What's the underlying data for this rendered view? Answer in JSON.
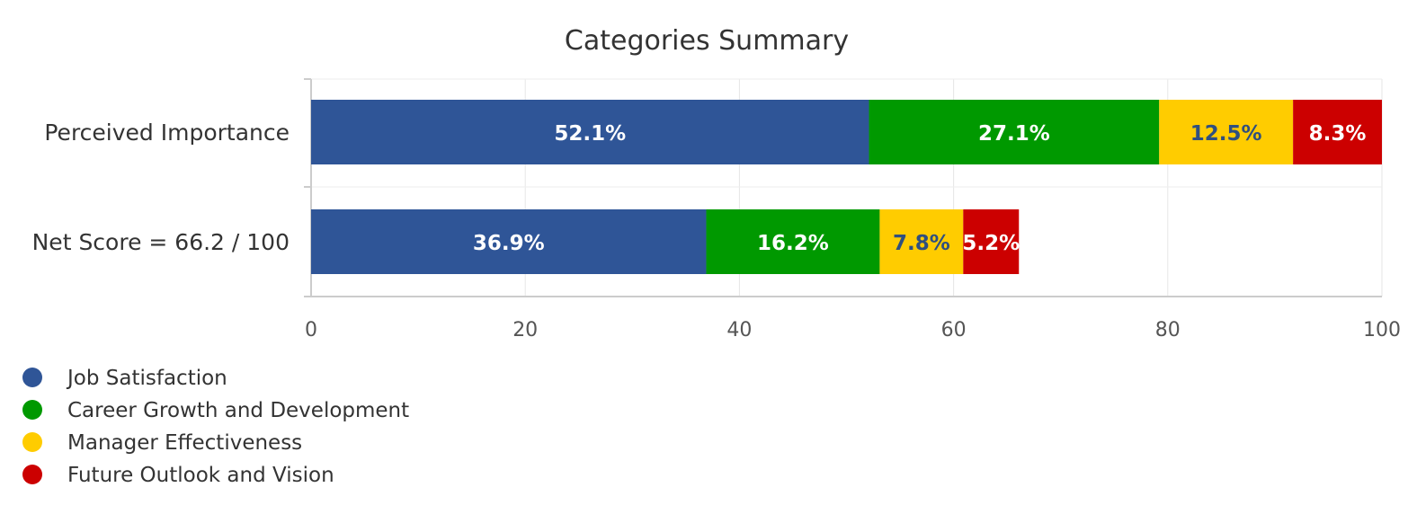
{
  "chart_data": {
    "type": "bar",
    "orientation": "horizontal",
    "stacked": true,
    "title": "Categories Summary",
    "xlabel": "",
    "ylabel": "",
    "xlim": [
      0,
      100
    ],
    "ticks": [
      "0",
      "20",
      "40",
      "60",
      "80",
      "100"
    ],
    "grid": true,
    "legend_position": "bottom-left",
    "categories": [
      "Perceived Importance",
      "Net Score = 66.2 / 100"
    ],
    "series": [
      {
        "name": "Job Satisfaction",
        "color": "#2f5597",
        "label_color": "#ffffff",
        "values": [
          52.1,
          36.9
        ],
        "labels": [
          "52.1%",
          "36.9%"
        ]
      },
      {
        "name": "Career Growth and Development",
        "color": "#009900",
        "label_color": "#ffffff",
        "values": [
          27.1,
          16.2
        ],
        "labels": [
          "27.1%",
          "16.2%"
        ]
      },
      {
        "name": "Manager Effectiveness",
        "color": "#ffcc00",
        "label_color": "#2f4f7f",
        "values": [
          12.5,
          7.8
        ],
        "labels": [
          "12.5%",
          "7.8%"
        ]
      },
      {
        "name": "Future Outlook and Vision",
        "color": "#cc0000",
        "label_color": "#ffffff",
        "values": [
          8.3,
          5.2
        ],
        "labels": [
          "8.3%",
          "5.2%"
        ]
      }
    ]
  }
}
